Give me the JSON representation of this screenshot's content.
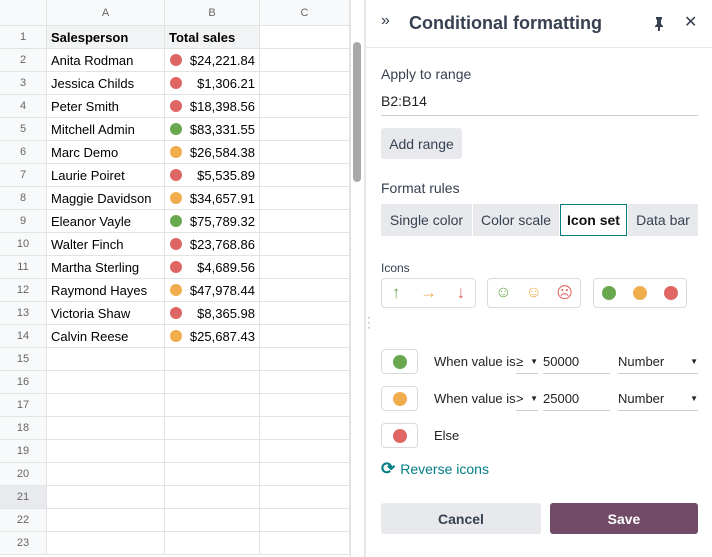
{
  "sheet": {
    "columns": [
      "A",
      "B",
      "C"
    ],
    "row_numbers": [
      1,
      2,
      3,
      4,
      5,
      6,
      7,
      8,
      9,
      10,
      11,
      12,
      13,
      14,
      15,
      16,
      17,
      18,
      19,
      20,
      21,
      22,
      23
    ],
    "header": [
      "Salesperson",
      "Total sales"
    ],
    "rows": [
      {
        "name": "Anita Rodman",
        "total": "$24,221.84",
        "icon_color": "#e06666"
      },
      {
        "name": "Jessica Childs",
        "total": "$1,306.21",
        "icon_color": "#e06666"
      },
      {
        "name": "Peter Smith",
        "total": "$18,398.56",
        "icon_color": "#e06666"
      },
      {
        "name": "Mitchell Admin",
        "total": "$83,331.55",
        "icon_color": "#6aa84f"
      },
      {
        "name": "Marc Demo",
        "total": "$26,584.38",
        "icon_color": "#f0ad4e"
      },
      {
        "name": "Laurie Poiret",
        "total": "$5,535.89",
        "icon_color": "#e06666"
      },
      {
        "name": "Maggie Davidson",
        "total": "$34,657.91",
        "icon_color": "#f0ad4e"
      },
      {
        "name": "Eleanor Vayle",
        "total": "$75,789.32",
        "icon_color": "#6aa84f"
      },
      {
        "name": "Walter Finch",
        "total": "$23,768.86",
        "icon_color": "#e06666"
      },
      {
        "name": "Martha Sterling",
        "total": "$4,689.56",
        "icon_color": "#e06666"
      },
      {
        "name": "Raymond Hayes",
        "total": "$47,978.44",
        "icon_color": "#f0ad4e"
      },
      {
        "name": "Victoria Shaw",
        "total": "$8,365.98",
        "icon_color": "#e06666"
      },
      {
        "name": "Calvin Reese",
        "total": "$25,687.43",
        "icon_color": "#f0ad4e"
      }
    ]
  },
  "panel": {
    "title": "Conditional formatting",
    "apply_label": "Apply to range",
    "range": "B2:B14",
    "add_range": "Add range",
    "format_rules_label": "Format rules",
    "tabs": [
      "Single color",
      "Color scale",
      "Icon set",
      "Data bar"
    ],
    "icons_label": "Icons",
    "rules": [
      {
        "condition": "When value is",
        "operator": "≥",
        "value": "50000",
        "type": "Number",
        "icon_color": "#6aa84f"
      },
      {
        "condition": "When value is",
        "operator": ">",
        "value": "25000",
        "type": "Number",
        "icon_color": "#f0ad4e"
      }
    ],
    "else": {
      "label": "Else",
      "icon_color": "#e06666"
    },
    "reverse": "Reverse icons",
    "cancel": "Cancel",
    "save": "Save"
  }
}
